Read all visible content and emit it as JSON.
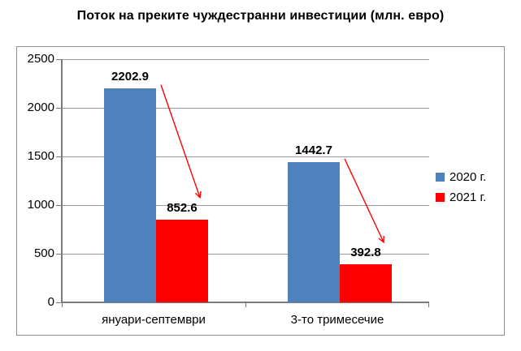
{
  "chart_data": {
    "type": "bar",
    "title": "Поток на преките чуждестранни инвестиции (млн. евро)",
    "categories": [
      "януари-септември",
      "3-то тримесечие"
    ],
    "series": [
      {
        "name": "2020 г.",
        "color": "#4F81BD",
        "values": [
          2202.9,
          1442.7
        ]
      },
      {
        "name": "2021 г.",
        "color": "#FF0000",
        "values": [
          852.6,
          392.8
        ]
      }
    ],
    "ylim": [
      0,
      2500
    ],
    "yticks": [
      0,
      500,
      1000,
      1500,
      2000,
      2500
    ],
    "grid": true,
    "legend_position": "right",
    "annotations": [
      {
        "type": "arrow",
        "color": "#FF0000",
        "category": 0,
        "from_series": 0,
        "to_series": 1
      },
      {
        "type": "arrow",
        "color": "#FF0000",
        "category": 1,
        "from_series": 0,
        "to_series": 1
      }
    ]
  }
}
